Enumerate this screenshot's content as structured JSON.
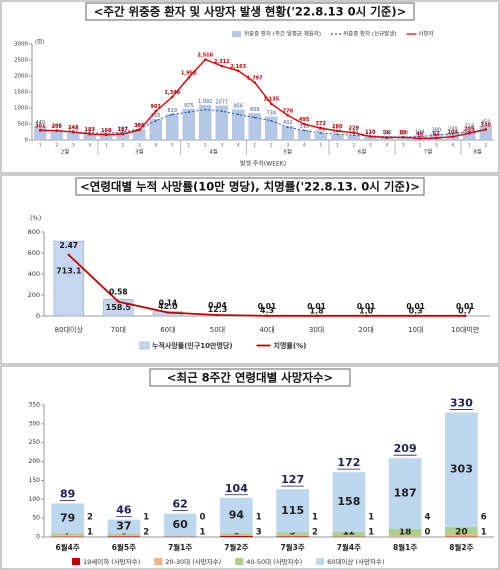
{
  "chart_data": [
    {
      "type": "bar",
      "title": "<주간 위중증 환자 및 사망자 발생 현황('22.8.13 0시 기준)>",
      "y_unit": "(명)",
      "x_title": "발생 주차(WEEK)",
      "categories": [
        "1",
        "2",
        "3",
        "4",
        "1",
        "2",
        "3",
        "4",
        "5",
        "1",
        "2",
        "3",
        "4",
        "1",
        "2",
        "3",
        "4",
        "5",
        "1",
        "2",
        "3",
        "4",
        "1",
        "2",
        "3",
        "4",
        "1",
        "2"
      ],
      "groups": [
        {
          "label": "2월",
          "count": 4
        },
        {
          "label": "3월",
          "count": 5
        },
        {
          "label": "4월",
          "count": 4
        },
        {
          "label": "5월",
          "count": 5
        },
        {
          "label": "6월",
          "count": 4
        },
        {
          "label": "7월",
          "count": 4
        },
        {
          "label": "8월",
          "count": 2
        }
      ],
      "ylim": [
        0,
        3000
      ],
      "yticks": [
        0,
        500,
        1000,
        1500,
        2000,
        2500,
        3000
      ],
      "series": [
        {
          "name": "위중증 환자 (주간 일평균 재원자)",
          "mark": "bar",
          "color": "#b4c7e7",
          "label_color": "#2f5597",
          "values": [
            440,
            309,
            225,
            167,
            133,
            237,
            342,
            655,
            819,
            975,
            1092,
            1077,
            956,
            839,
            734,
            432,
            310,
            208,
            176,
            145,
            130,
            120,
            110,
            144,
            200,
            230,
            324,
            450
          ],
          "value_labels": [
            "440",
            "309",
            "225",
            "167",
            "133",
            "237",
            "342",
            "655",
            "819",
            "975",
            "1,092",
            "1077",
            "956",
            "839",
            "734",
            "432",
            "310",
            "208",
            "176",
            "145",
            "130",
            "120",
            "110",
            "144",
            "200",
            "230",
            "324",
            "450"
          ]
        },
        {
          "name": "위중증 환자 (신규발생)",
          "mark": "line",
          "dash": true,
          "color": "#2f5597",
          "values": [
            320,
            280,
            250,
            230,
            200,
            250,
            340,
            600,
            800,
            873,
            950,
            900,
            800,
            700,
            600,
            400,
            300,
            220,
            180,
            150,
            130,
            100,
            90,
            110,
            150,
            200,
            260,
            320
          ]
        },
        {
          "name": "사망자",
          "mark": "line",
          "color": "#e00000",
          "label_color": "#c00000",
          "values": [
            301,
            295,
            248,
            183,
            160,
            187,
            309,
            901,
            1348,
            1952,
            2516,
            2312,
            2163,
            1797,
            1135,
            770,
            495,
            372,
            280,
            229,
            113,
            76,
            89,
            46,
            62,
            104,
            209,
            330
          ],
          "value_labels": [
            "301",
            "295",
            "248",
            "183",
            "160",
            "187",
            "309",
            "901",
            "1,348",
            "1,952",
            "2,516",
            "2,312",
            "2,163",
            "1,797",
            "1,135",
            "770",
            "495",
            "372",
            "280",
            "229",
            "113",
            "76",
            "89",
            "46",
            "62",
            "104",
            "209",
            "330"
          ]
        }
      ]
    },
    {
      "type": "bar",
      "title": "<연령대별 누적 사망률(10만 명당), 치명률('22.8.13. 0시 기준)>",
      "y_unit": "(%)",
      "categories": [
        "80대이상",
        "70대",
        "60대",
        "50대",
        "40대",
        "30대",
        "20대",
        "10대",
        "10대미만"
      ],
      "ylim": [
        0,
        800
      ],
      "yticks": [
        0,
        200,
        400,
        600,
        800
      ],
      "y2lim": [
        0,
        3.4
      ],
      "series": [
        {
          "name": "누적사망률(인구10만명당)",
          "mark": "bar",
          "color": "#c5d6ee",
          "label_color": "#222",
          "values": [
            713.1,
            158.5,
            42,
            12.3,
            4.3,
            1.8,
            1,
            0.3,
            0.7
          ],
          "value_labels": [
            "713.1",
            "158.5",
            "42.0",
            "12.3",
            "4.3",
            "1.8",
            "1.0",
            "0.3",
            "0.7"
          ]
        },
        {
          "name": "치명률(%)",
          "mark": "line",
          "axis": "y2",
          "color": "#c00000",
          "label_color": "#111",
          "values": [
            2.47,
            0.58,
            0.14,
            0.04,
            0.01,
            0.01,
            0.01,
            0.01,
            0.01
          ]
        }
      ]
    },
    {
      "type": "stacked_bar",
      "title": "<최근 8주간 연령대별 사망자수>",
      "categories": [
        "6월4주",
        "6월5주",
        "7월1주",
        "7월2주",
        "7월3주",
        "7월4주",
        "8월1주",
        "8월2주"
      ],
      "ylim": [
        0,
        350
      ],
      "yticks": [
        0,
        50,
        100,
        150,
        200,
        250,
        300,
        350
      ],
      "totals": [
        89,
        46,
        62,
        104,
        127,
        172,
        209,
        330
      ],
      "series": [
        {
          "name": "19세이하 (사망자수)",
          "color": "#c00000",
          "values": [
            1,
            2,
            1,
            3,
            2,
            1,
            0,
            1
          ]
        },
        {
          "name": "20-30대 (사망자수)",
          "color": "#f4b183",
          "values": [
            2,
            1,
            0,
            1,
            1,
            1,
            4,
            6
          ]
        },
        {
          "name": "40-50대 (사망자수)",
          "color": "#a9d18e",
          "values": [
            7,
            6,
            1,
            6,
            9,
            12,
            18,
            20
          ]
        },
        {
          "name": "60대이상 (사망자수)",
          "color": "#bdd7ee",
          "values": [
            79,
            37,
            60,
            94,
            115,
            158,
            187,
            303
          ]
        }
      ]
    }
  ]
}
